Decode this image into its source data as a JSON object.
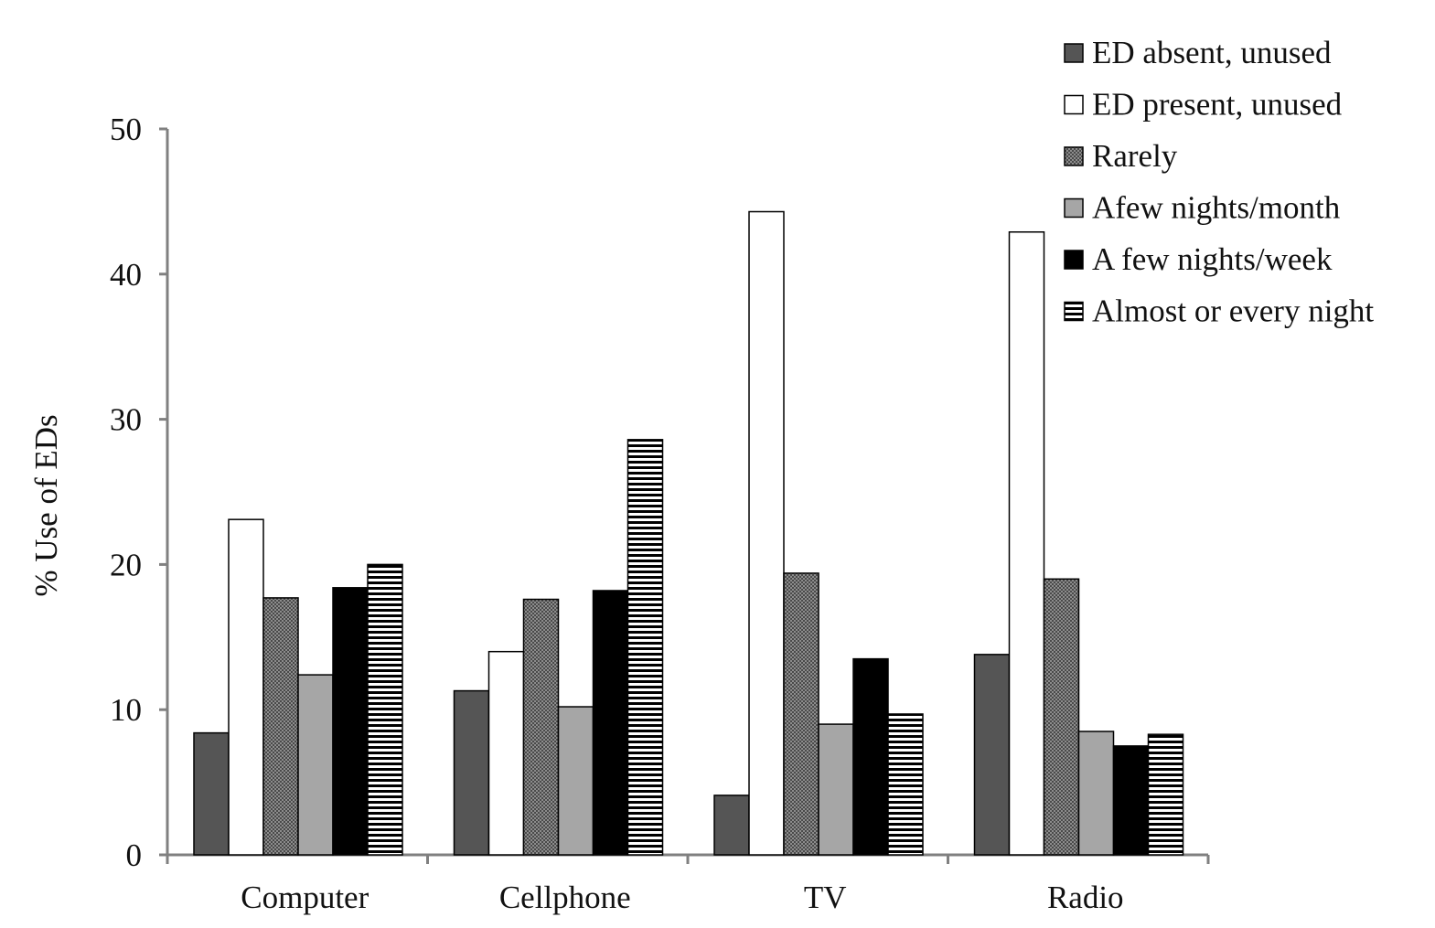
{
  "chart_data": {
    "type": "bar",
    "title": "",
    "xlabel": "",
    "ylabel": "% Use of EDs",
    "ylim": [
      0,
      50
    ],
    "yticks": [
      0,
      10,
      20,
      30,
      40,
      50
    ],
    "grid": false,
    "legend_position": "top-right",
    "categories": [
      "Computer",
      "Cellphone",
      "TV",
      "Radio"
    ],
    "series": [
      {
        "name": "ED absent, unused",
        "values": [
          8.4,
          11.3,
          4.1,
          13.8
        ],
        "color": "#555555",
        "pattern": "solid"
      },
      {
        "name": "ED present, unused",
        "values": [
          23.1,
          14.0,
          44.3,
          42.9
        ],
        "color": "#ffffff",
        "pattern": "solid"
      },
      {
        "name": "Rarely",
        "values": [
          17.7,
          17.6,
          19.4,
          19.0
        ],
        "color": "#7a7a7a",
        "pattern": "checker"
      },
      {
        "name": "Afew nights/month",
        "values": [
          12.4,
          10.2,
          9.0,
          8.5
        ],
        "color": "#a6a6a6",
        "pattern": "solid"
      },
      {
        "name": "A few nights/week",
        "values": [
          18.4,
          18.2,
          13.5,
          7.5
        ],
        "color": "#000000",
        "pattern": "solid"
      },
      {
        "name": "Almost or every night",
        "values": [
          20.0,
          28.6,
          9.7,
          8.3
        ],
        "color": "#000000",
        "pattern": "hstripes"
      }
    ]
  }
}
